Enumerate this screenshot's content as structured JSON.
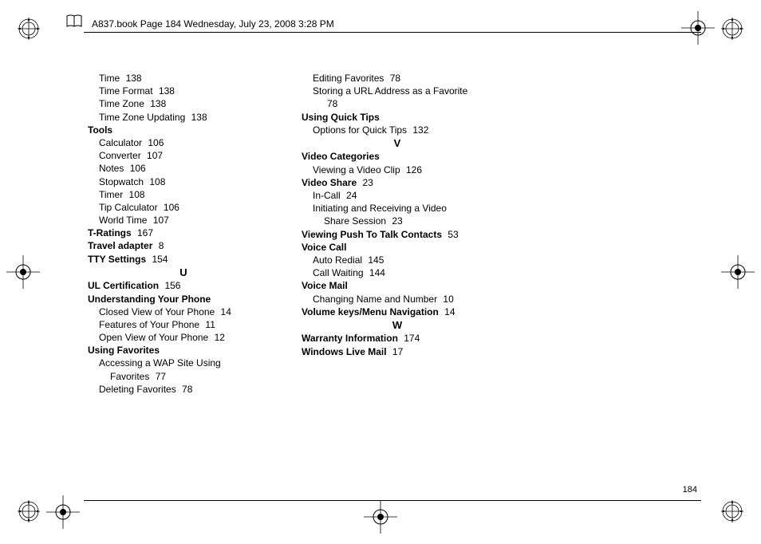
{
  "header": {
    "text": "A837.book  Page 184  Wednesday, July 23, 2008  3:28 PM"
  },
  "page_number": "184",
  "columns": [
    [
      {
        "type": "sub",
        "text": "Time",
        "page": "138"
      },
      {
        "type": "sub",
        "text": "Time Format",
        "page": "138"
      },
      {
        "type": "sub",
        "text": "Time Zone",
        "page": "138"
      },
      {
        "type": "sub",
        "text": "Time Zone Updating",
        "page": "138"
      },
      {
        "type": "head",
        "text": "Tools"
      },
      {
        "type": "sub",
        "text": "Calculator",
        "page": "106"
      },
      {
        "type": "sub",
        "text": "Converter",
        "page": "107"
      },
      {
        "type": "sub",
        "text": "Notes",
        "page": "106"
      },
      {
        "type": "sub",
        "text": "Stopwatch",
        "page": "108"
      },
      {
        "type": "sub",
        "text": "Timer",
        "page": "108"
      },
      {
        "type": "sub",
        "text": "Tip Calculator",
        "page": "106"
      },
      {
        "type": "sub",
        "text": "World Time",
        "page": "107"
      },
      {
        "type": "head",
        "text": "T-Ratings",
        "page": "167"
      },
      {
        "type": "head",
        "text": "Travel adapter",
        "page": "8"
      },
      {
        "type": "head",
        "text": "TTY Settings",
        "page": "154"
      },
      {
        "type": "letter",
        "text": "U"
      },
      {
        "type": "head",
        "text": "UL Certification",
        "page": "156"
      },
      {
        "type": "head",
        "text": "Understanding Your Phone"
      },
      {
        "type": "sub",
        "text": "Closed View of Your Phone",
        "page": "14"
      },
      {
        "type": "sub",
        "text": "Features of Your Phone",
        "page": "11"
      },
      {
        "type": "sub",
        "text": "Open View of Your Phone",
        "page": "12"
      },
      {
        "type": "head",
        "text": "Using Favorites"
      },
      {
        "type": "sub",
        "text": "Accessing a WAP Site Using"
      },
      {
        "type": "subsub",
        "text": "Favorites",
        "page": "77"
      },
      {
        "type": "sub",
        "text": "Deleting Favorites",
        "page": "78"
      }
    ],
    [
      {
        "type": "sub",
        "text": "Editing Favorites",
        "page": "78"
      },
      {
        "type": "sub",
        "text": "Storing a URL Address as a Favorite"
      },
      {
        "type": "subsub",
        "text": "",
        "page": "78"
      },
      {
        "type": "head",
        "text": "Using Quick Tips"
      },
      {
        "type": "sub",
        "text": "Options for Quick Tips",
        "page": "132"
      },
      {
        "type": "letter",
        "text": "V"
      },
      {
        "type": "head",
        "text": "Video Categories"
      },
      {
        "type": "sub",
        "text": "Viewing a Video Clip",
        "page": "126"
      },
      {
        "type": "head",
        "text": "Video Share",
        "page": "23"
      },
      {
        "type": "sub",
        "text": "In-Call",
        "page": "24"
      },
      {
        "type": "sub",
        "text": "Initiating and Receiving a Video"
      },
      {
        "type": "subsub",
        "text": "Share Session",
        "page": "23"
      },
      {
        "type": "head",
        "text": "Viewing Push To Talk Contacts",
        "page": "53"
      },
      {
        "type": "head",
        "text": "Voice Call"
      },
      {
        "type": "sub",
        "text": "Auto Redial",
        "page": "145"
      },
      {
        "type": "sub",
        "text": "Call Waiting",
        "page": "144"
      },
      {
        "type": "head",
        "text": "Voice Mail"
      },
      {
        "type": "sub",
        "text": "Changing Name and Number",
        "page": "10"
      },
      {
        "type": "head",
        "text": "Volume keys/Menu Navigation",
        "page": "14"
      },
      {
        "type": "letter",
        "text": "W"
      },
      {
        "type": "head",
        "text": "Warranty Information",
        "page": "174"
      },
      {
        "type": "head",
        "text": "Windows Live Mail",
        "page": "17"
      }
    ]
  ]
}
